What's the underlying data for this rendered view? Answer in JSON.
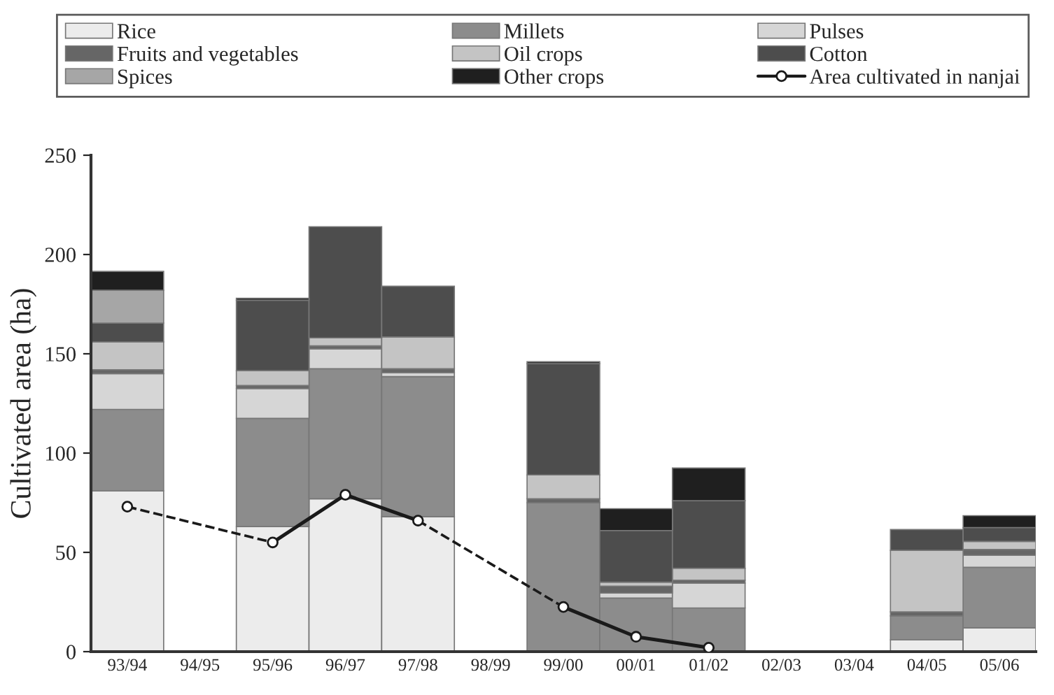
{
  "chart_data": {
    "type": "bar",
    "stacked": true,
    "ylabel": "Cultivated area (ha)",
    "categories": [
      "93/94",
      "94/95",
      "95/96",
      "96/97",
      "97/98",
      "98/99",
      "99/00",
      "00/01",
      "01/02",
      "02/03",
      "03/04",
      "04/05",
      "05/06"
    ],
    "series": [
      {
        "name": "Rice",
        "color": "#ececec",
        "values": [
          81,
          null,
          63,
          77,
          68,
          null,
          null,
          null,
          null,
          null,
          null,
          6,
          12
        ]
      },
      {
        "name": "Millets",
        "color": "#8c8c8c",
        "values": [
          41,
          null,
          54.5,
          65.5,
          70.5,
          null,
          75,
          27,
          22,
          null,
          null,
          12,
          30.5
        ]
      },
      {
        "name": "Pulses",
        "color": "#d6d6d6",
        "values": [
          18,
          null,
          15,
          10,
          2,
          null,
          null,
          2.5,
          12.5,
          null,
          null,
          null,
          6
        ]
      },
      {
        "name": "Fruits and vegetables",
        "color": "#666666",
        "values": [
          2,
          null,
          1.5,
          1.5,
          2,
          null,
          2,
          3.5,
          1.5,
          null,
          null,
          2,
          3
        ]
      },
      {
        "name": "Oil crops",
        "color": "#c4c4c4",
        "values": [
          14,
          null,
          7.5,
          4,
          16,
          null,
          12,
          2,
          6,
          null,
          null,
          31,
          4
        ]
      },
      {
        "name": "Cotton",
        "color": "#4d4d4d",
        "values": [
          9.5,
          null,
          35.5,
          56,
          25.5,
          null,
          56,
          26,
          34,
          null,
          null,
          10.5,
          7
        ]
      },
      {
        "name": "Spices",
        "color": "#a6a6a6",
        "values": [
          16.5,
          null,
          null,
          null,
          null,
          null,
          null,
          null,
          null,
          null,
          null,
          null,
          null
        ]
      },
      {
        "name": "Other crops",
        "color": "#1f1f1f",
        "values": [
          9.5,
          null,
          1,
          null,
          null,
          null,
          1,
          11,
          16.5,
          null,
          null,
          null,
          6
        ]
      },
      {
        "name": "Area cultivated in nanjai",
        "type": "line",
        "color": "#1a1a1a",
        "marker": "circle",
        "line_style": "solid",
        "values": [
          73,
          null,
          55,
          79,
          66,
          null,
          22.5,
          7.5,
          2,
          null,
          null,
          null,
          null
        ]
      }
    ],
    "ylim": [
      0,
      250
    ],
    "yticks": [
      0,
      50,
      100,
      150,
      200,
      250
    ],
    "grid": false,
    "legend": "top"
  }
}
